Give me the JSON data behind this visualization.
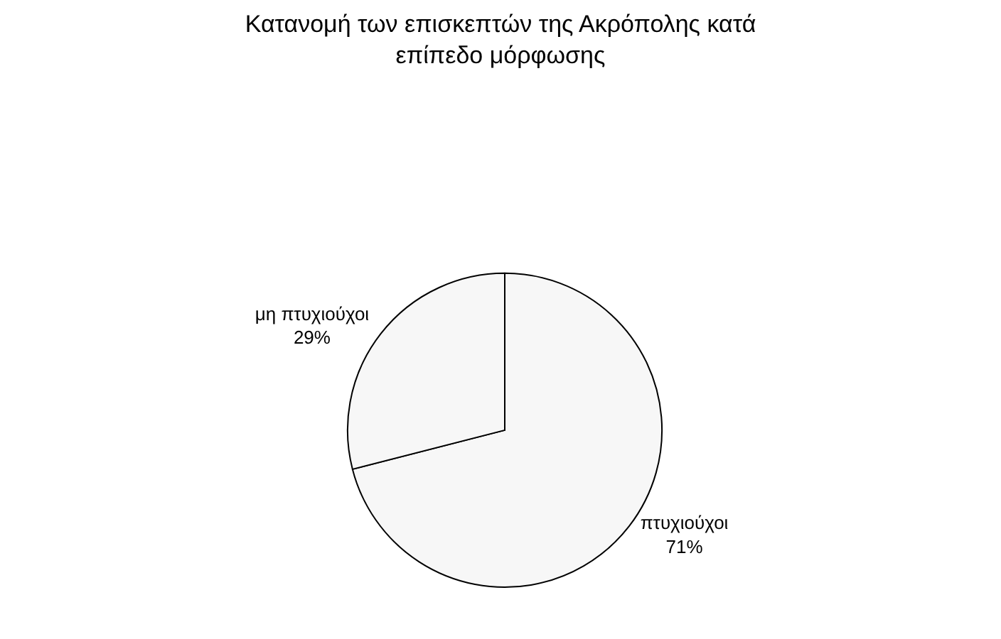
{
  "chart_data": {
    "type": "pie",
    "title": "Κατανομή των επισκεπτών της Ακρόπολης κατά\nεπίπεδο μόρφωσης",
    "categories": [
      "πτυχιούχοι",
      "μη πτυχιούχοι"
    ],
    "values": [
      71,
      29
    ],
    "value_labels": [
      "71%",
      "29%"
    ],
    "colors": [
      "#f7f7f7",
      "#f7f7f7"
    ],
    "legend": false
  }
}
